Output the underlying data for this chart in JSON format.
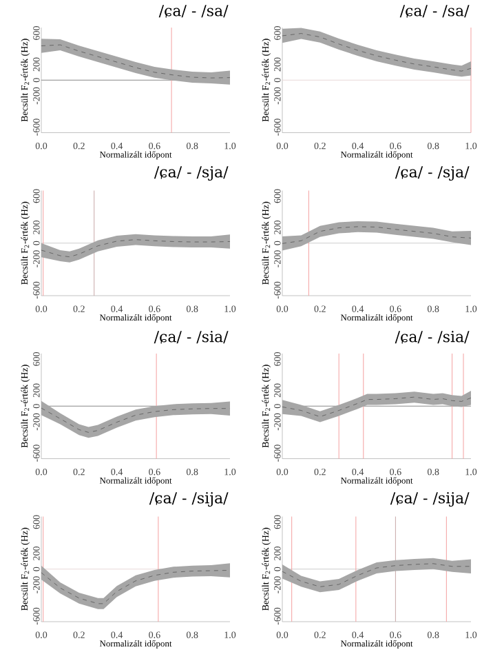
{
  "chart_data": [
    {
      "type": "line",
      "title": "/ɕa/ - /sa/",
      "xlabel": "Normalizált időpont",
      "ylabel": "Becsült F$_{2}$-érték (Hz)",
      "xlim": [
        0,
        1
      ],
      "ylim": [
        -670,
        670
      ],
      "xticks": [
        {
          "value": 0,
          "label": "0.0"
        },
        {
          "value": 0.2,
          "label": "0.2"
        },
        {
          "value": 0.4,
          "label": "0.4"
        },
        {
          "value": 0.6,
          "label": "0.6"
        },
        {
          "value": 0.8,
          "label": "0.8"
        },
        {
          "value": 1,
          "label": "1.0"
        }
      ],
      "yticks": [
        -600,
        -200,
        0,
        200,
        600
      ],
      "line_style": "dashed",
      "series": [
        {
          "color": "#555555",
          "x": [
            0,
            0.1,
            0.2,
            0.3,
            0.4,
            0.5,
            0.6,
            0.7,
            0.8,
            0.9,
            1.0
          ],
          "values": [
            437,
            450,
            370,
            300,
            230,
            160,
            100,
            65,
            37,
            28,
            32
          ],
          "lower": [
            347,
            380,
            300,
            230,
            160,
            90,
            30,
            -5,
            -33,
            -42,
            -58
          ],
          "upper": [
            527,
            520,
            440,
            370,
            300,
            230,
            170,
            135,
            107,
            98,
            122
          ]
        }
      ],
      "ref_lines": [
        {
          "axis": "y",
          "value": 0,
          "color": "#888888"
        },
        {
          "axis": "x",
          "value": 0.69,
          "color": "#f4a0a0"
        }
      ]
    },
    {
      "type": "line",
      "title": "/ɕa/ - /sa/",
      "xlabel": "Normalizált időpont",
      "ylabel": "Becsült F$_{2}$-érték (Hz)",
      "xlim": [
        0,
        1
      ],
      "ylim": [
        -670,
        670
      ],
      "xticks": [
        {
          "value": 0,
          "label": "0.0"
        },
        {
          "value": 0.2,
          "label": "0.2"
        },
        {
          "value": 0.4,
          "label": "0.4"
        },
        {
          "value": 0.6,
          "label": "0.6"
        },
        {
          "value": 0.8,
          "label": "0.8"
        },
        {
          "value": 1,
          "label": "1.0"
        }
      ],
      "yticks": [
        -600,
        -200,
        0,
        200,
        600
      ],
      "line_style": "dashed",
      "series": [
        {
          "color": "#555555",
          "x": [
            0,
            0.1,
            0.2,
            0.3,
            0.4,
            0.5,
            0.6,
            0.7,
            0.8,
            0.9,
            0.95,
            1.0
          ],
          "values": [
            565,
            595,
            550,
            460,
            380,
            310,
            255,
            205,
            170,
            130,
            115,
            150
          ],
          "lower": [
            475,
            525,
            480,
            390,
            310,
            240,
            185,
            135,
            100,
            60,
            45,
            60
          ],
          "upper": [
            655,
            665,
            620,
            530,
            450,
            380,
            325,
            275,
            240,
            200,
            185,
            240
          ]
        }
      ],
      "ref_lines": [
        {
          "axis": "y",
          "value": 0,
          "color": "#e8d8d8"
        },
        {
          "axis": "x",
          "value": 1.0,
          "color": "#f4a0a0"
        }
      ]
    },
    {
      "type": "line",
      "title": "/ɕa/ - /sja/",
      "xlabel": "Normalizált időpont",
      "ylabel": "Becsült F$_{2}$-érték (Hz)",
      "xlim": [
        0,
        1
      ],
      "ylim": [
        -670,
        670
      ],
      "xticks": [
        {
          "value": 0,
          "label": "0.0"
        },
        {
          "value": 0.2,
          "label": "0.2"
        },
        {
          "value": 0.4,
          "label": "0.4"
        },
        {
          "value": 0.6,
          "label": "0.6"
        },
        {
          "value": 0.8,
          "label": "0.8"
        },
        {
          "value": 1,
          "label": "1.0"
        }
      ],
      "yticks": [
        -600,
        -200,
        0,
        200,
        600
      ],
      "line_style": "dashed",
      "series": [
        {
          "color": "#555555",
          "x": [
            0,
            0.1,
            0.15,
            0.2,
            0.3,
            0.4,
            0.5,
            0.6,
            0.7,
            0.8,
            0.9,
            1.0
          ],
          "values": [
            -90,
            -160,
            -175,
            -140,
            -35,
            25,
            45,
            30,
            20,
            15,
            15,
            20
          ],
          "lower": [
            -180,
            -230,
            -245,
            -210,
            -105,
            -45,
            -25,
            -40,
            -50,
            -55,
            -55,
            -70
          ],
          "upper": [
            0,
            -90,
            -105,
            -70,
            35,
            95,
            115,
            100,
            90,
            85,
            85,
            110
          ]
        }
      ],
      "ref_lines": [
        {
          "axis": "y",
          "value": 0,
          "color": "#cccccc"
        },
        {
          "axis": "x",
          "value": 0.01,
          "color": "#f4a0a0"
        },
        {
          "axis": "x",
          "value": 0.28,
          "color": "#c8a8a8"
        }
      ]
    },
    {
      "type": "line",
      "title": "/ɕa/ - /sja/",
      "xlabel": "Normalizált időpont",
      "ylabel": "Becsült F$_{2}$-érték (Hz)",
      "xlim": [
        0,
        1
      ],
      "ylim": [
        -670,
        670
      ],
      "xticks": [
        {
          "value": 0,
          "label": "0.0"
        },
        {
          "value": 0.2,
          "label": "0.2"
        },
        {
          "value": 0.4,
          "label": "0.4"
        },
        {
          "value": 0.6,
          "label": "0.6"
        },
        {
          "value": 0.8,
          "label": "0.8"
        },
        {
          "value": 1,
          "label": "1.0"
        }
      ],
      "yticks": [
        -600,
        -200,
        0,
        200,
        600
      ],
      "line_style": "dashed",
      "series": [
        {
          "color": "#555555",
          "x": [
            0,
            0.1,
            0.2,
            0.3,
            0.4,
            0.5,
            0.6,
            0.7,
            0.8,
            0.9,
            1.0
          ],
          "values": [
            -5,
            30,
            150,
            195,
            210,
            205,
            175,
            150,
            125,
            80,
            65
          ],
          "lower": [
            -95,
            -40,
            80,
            125,
            140,
            135,
            105,
            80,
            55,
            10,
            -25
          ],
          "upper": [
            85,
            100,
            220,
            265,
            280,
            275,
            245,
            220,
            195,
            150,
            155
          ]
        }
      ],
      "ref_lines": [
        {
          "axis": "y",
          "value": 0,
          "color": "#cccccc"
        },
        {
          "axis": "x",
          "value": 0.14,
          "color": "#f4a0a0"
        }
      ]
    },
    {
      "type": "line",
      "title": "/ɕa/ - /sia/",
      "xlabel": "Normalizált időpont",
      "ylabel": "Becsült F$_{2}$-érték (Hz)",
      "xlim": [
        0,
        1
      ],
      "ylim": [
        -670,
        670
      ],
      "xticks": [
        {
          "value": 0,
          "label": "0.0"
        },
        {
          "value": 0.2,
          "label": "0.2"
        },
        {
          "value": 0.4,
          "label": "0.4"
        },
        {
          "value": 0.6,
          "label": "0.6"
        },
        {
          "value": 0.8,
          "label": "0.8"
        },
        {
          "value": 1,
          "label": "1.0"
        }
      ],
      "yticks": [
        -600,
        -200,
        0,
        200,
        600
      ],
      "line_style": "dashed",
      "series": [
        {
          "color": "#555555",
          "x": [
            0,
            0.1,
            0.2,
            0.25,
            0.3,
            0.4,
            0.5,
            0.6,
            0.7,
            0.8,
            0.9,
            1.0
          ],
          "values": [
            -25,
            -160,
            -300,
            -335,
            -310,
            -205,
            -115,
            -70,
            -45,
            -35,
            -30,
            -30
          ],
          "lower": [
            -115,
            -230,
            -370,
            -405,
            -380,
            -275,
            -185,
            -140,
            -115,
            -105,
            -100,
            -120
          ],
          "upper": [
            65,
            -90,
            -230,
            -265,
            -240,
            -135,
            -45,
            0,
            25,
            35,
            40,
            60
          ]
        }
      ],
      "ref_lines": [
        {
          "axis": "y",
          "value": 0,
          "color": "#888888"
        },
        {
          "axis": "x",
          "value": 0.61,
          "color": "#f4a0a0"
        }
      ]
    },
    {
      "type": "line",
      "title": "/ɕa/ - /sia/",
      "xlabel": "Normalizált időpont",
      "ylabel": "Becsült F$_{2}$-érték (Hz)",
      "xlim": [
        0,
        1
      ],
      "ylim": [
        -670,
        670
      ],
      "xticks": [
        {
          "value": 0,
          "label": "0.0"
        },
        {
          "value": 0.2,
          "label": "0.2"
        },
        {
          "value": 0.4,
          "label": "0.4"
        },
        {
          "value": 0.6,
          "label": "0.6"
        },
        {
          "value": 0.8,
          "label": "0.8"
        },
        {
          "value": 1,
          "label": "1.0"
        }
      ],
      "yticks": [
        -600,
        -200,
        0,
        200,
        600
      ],
      "line_style": "dashed",
      "series": [
        {
          "color": "#555555",
          "x": [
            0,
            0.1,
            0.2,
            0.3,
            0.4,
            0.45,
            0.5,
            0.6,
            0.7,
            0.8,
            0.85,
            0.9,
            0.95,
            1.0
          ],
          "values": [
            -10,
            -55,
            -135,
            -55,
            35,
            85,
            85,
            95,
            115,
            85,
            95,
            70,
            60,
            105
          ],
          "lower": [
            -100,
            -125,
            -205,
            -125,
            -35,
            15,
            15,
            25,
            45,
            15,
            25,
            0,
            -10,
            15
          ],
          "upper": [
            80,
            15,
            -65,
            15,
            105,
            155,
            155,
            165,
            185,
            155,
            165,
            140,
            130,
            195
          ]
        }
      ],
      "ref_lines": [
        {
          "axis": "y",
          "value": 0,
          "color": "#888888"
        },
        {
          "axis": "x",
          "value": 0.3,
          "color": "#f4a0a0"
        },
        {
          "axis": "x",
          "value": 0.43,
          "color": "#f4a0a0"
        },
        {
          "axis": "x",
          "value": 0.9,
          "color": "#f4a0a0"
        },
        {
          "axis": "x",
          "value": 0.96,
          "color": "#f4a0a0"
        }
      ]
    },
    {
      "type": "line",
      "title": "/ɕa/ - /sija/",
      "xlabel": "Normalizált időpont",
      "ylabel": "Becsült F$_{2}$-érték (Hz)",
      "xlim": [
        0,
        1
      ],
      "ylim": [
        -670,
        670
      ],
      "xticks": [
        {
          "value": 0,
          "label": "0.0"
        },
        {
          "value": 0.2,
          "label": "0.2"
        },
        {
          "value": 0.4,
          "label": "0.4"
        },
        {
          "value": 0.6,
          "label": "0.6"
        },
        {
          "value": 0.8,
          "label": "0.8"
        },
        {
          "value": 1,
          "label": "1.0"
        }
      ],
      "yticks": [
        -600,
        -200,
        0,
        200,
        600
      ],
      "line_style": "dashed",
      "series": [
        {
          "color": "#555555",
          "x": [
            0,
            0.1,
            0.2,
            0.3,
            0.33,
            0.4,
            0.5,
            0.6,
            0.7,
            0.8,
            0.9,
            1.0
          ],
          "values": [
            -45,
            -240,
            -370,
            -440,
            -440,
            -285,
            -150,
            -80,
            -40,
            -25,
            -20,
            -15
          ],
          "lower": [
            -135,
            -310,
            -440,
            -510,
            -510,
            -355,
            -220,
            -150,
            -110,
            -95,
            -90,
            -105
          ],
          "upper": [
            45,
            -170,
            -300,
            -370,
            -370,
            -215,
            -80,
            -10,
            30,
            45,
            50,
            75
          ]
        }
      ],
      "ref_lines": [
        {
          "axis": "y",
          "value": 0,
          "color": "#e8d8d8"
        },
        {
          "axis": "x",
          "value": 0.01,
          "color": "#f4a0a0"
        },
        {
          "axis": "x",
          "value": 0.62,
          "color": "#f4a0a0"
        }
      ]
    },
    {
      "type": "line",
      "title": "/ɕa/ - /sija/",
      "xlabel": "Normalizált időpont",
      "ylabel": "Becsült F$_{2}$-érték (Hz)",
      "xlim": [
        0,
        1
      ],
      "ylim": [
        -670,
        670
      ],
      "xticks": [
        {
          "value": 0,
          "label": "0.0"
        },
        {
          "value": 0.2,
          "label": "0.2"
        },
        {
          "value": 0.4,
          "label": "0.4"
        },
        {
          "value": 0.6,
          "label": "0.6"
        },
        {
          "value": 0.8,
          "label": "0.8"
        },
        {
          "value": 1,
          "label": "1.0"
        }
      ],
      "yticks": [
        -600,
        -200,
        0,
        200,
        600
      ],
      "line_style": "dashed",
      "series": [
        {
          "color": "#555555",
          "x": [
            0,
            0.1,
            0.2,
            0.3,
            0.4,
            0.5,
            0.6,
            0.7,
            0.8,
            0.9,
            1.0
          ],
          "values": [
            -30,
            -155,
            -225,
            -195,
            -80,
            15,
            45,
            60,
            70,
            35,
            35
          ],
          "lower": [
            -120,
            -225,
            -295,
            -265,
            -150,
            -55,
            -25,
            -10,
            0,
            -35,
            -55
          ],
          "upper": [
            60,
            -85,
            -155,
            -125,
            -10,
            85,
            115,
            130,
            140,
            105,
            125
          ]
        }
      ],
      "ref_lines": [
        {
          "axis": "y",
          "value": 0,
          "color": "#cccccc"
        },
        {
          "axis": "x",
          "value": 0.05,
          "color": "#f4a0a0"
        },
        {
          "axis": "x",
          "value": 0.39,
          "color": "#f4a0a0"
        },
        {
          "axis": "x",
          "value": 0.6,
          "color": "#c8a8a8"
        },
        {
          "axis": "x",
          "value": 0.87,
          "color": "#f4a0a0"
        }
      ]
    }
  ]
}
